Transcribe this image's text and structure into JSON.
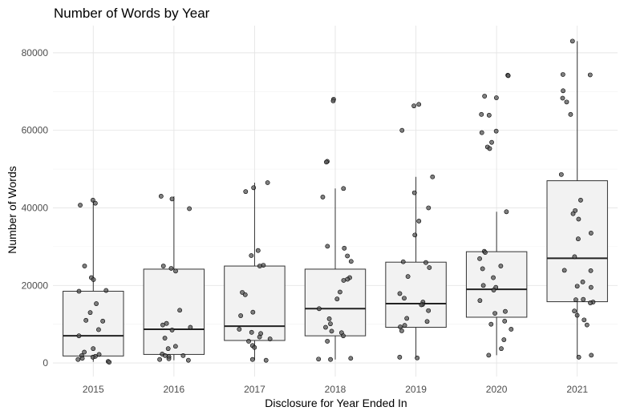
{
  "chart_data": {
    "type": "box",
    "title": "Number of Words by Year",
    "xlabel": "Disclosure for Year Ended In",
    "ylabel": "Number of Words",
    "categories": [
      "2015",
      "2016",
      "2017",
      "2018",
      "2019",
      "2020",
      "2021"
    ],
    "yticks": [
      "0",
      "20000",
      "40000",
      "60000",
      "80000"
    ],
    "ylim": [
      -3500,
      87000
    ],
    "grid": true,
    "colors": {
      "box_fill": "#f2f2f2",
      "point": "#555555",
      "line": "#333333"
    },
    "boxes": [
      {
        "category": "2015",
        "min": 300,
        "q1": 1800,
        "median": 7000,
        "q3": 18500,
        "max": 42000
      },
      {
        "category": "2016",
        "min": 700,
        "q1": 2200,
        "median": 8700,
        "q3": 24200,
        "max": 43000
      },
      {
        "category": "2017",
        "min": 800,
        "q1": 5800,
        "median": 9500,
        "q3": 25000,
        "max": 46500
      },
      {
        "category": "2018",
        "min": 900,
        "q1": 7000,
        "median": 14000,
        "q3": 24200,
        "max": 45000
      },
      {
        "category": "2019",
        "min": 1300,
        "q1": 9200,
        "median": 15300,
        "q3": 26000,
        "max": 48000
      },
      {
        "category": "2020",
        "min": 2000,
        "q1": 11800,
        "median": 19000,
        "q3": 28700,
        "max": 39000
      },
      {
        "category": "2021",
        "min": 1500,
        "q1": 15800,
        "median": 27000,
        "q3": 47000,
        "max": 83000
      }
    ],
    "points": [
      {
        "category": "2015",
        "values": [
          42000,
          41200,
          40700,
          25000,
          22000,
          21500,
          18500,
          18700,
          15300,
          13000,
          11000,
          10800,
          8600,
          7000,
          3700,
          2800,
          2200,
          1900,
          1700,
          1500,
          1200,
          900,
          400,
          200
        ]
      },
      {
        "category": "2016",
        "values": [
          43000,
          42300,
          39800,
          25000,
          24400,
          23700,
          13600,
          10200,
          9800,
          9200,
          8500,
          6400,
          4300,
          3700,
          2300,
          1900,
          1600,
          1100,
          900,
          700,
          1900
        ]
      },
      {
        "category": "2017",
        "values": [
          46500,
          45200,
          44200,
          29000,
          27700,
          25200,
          25000,
          18200,
          17600,
          13100,
          12200,
          8700,
          7900,
          7600,
          6700,
          6200,
          5600,
          4500,
          4000,
          900,
          700
        ]
      },
      {
        "category": "2018",
        "values": [
          68000,
          67600,
          52000,
          51800,
          45000,
          42800,
          30100,
          29600,
          27600,
          26200,
          22000,
          21600,
          21300,
          18300,
          16500,
          14000,
          11400,
          10100,
          9200,
          8200,
          7800,
          7000,
          5600,
          1200,
          1000,
          900
        ]
      },
      {
        "category": "2019",
        "values": [
          66700,
          66300,
          60000,
          48000,
          43900,
          40000,
          36600,
          33000,
          26100,
          25900,
          24600,
          22300,
          17900,
          16700,
          15700,
          15100,
          15000,
          13500,
          11500,
          10700,
          9700,
          9300,
          8300,
          1500,
          1300
        ]
      },
      {
        "category": "2020",
        "values": [
          74200,
          74100,
          68800,
          68400,
          64100,
          63900,
          59800,
          59400,
          56900,
          55700,
          55300,
          39000,
          28800,
          28500,
          26900,
          25000,
          24300,
          22000,
          20000,
          19500,
          18800,
          16100,
          13300,
          12800,
          10800,
          10000,
          8700,
          6000,
          3700,
          2000
        ]
      },
      {
        "category": "2021",
        "values": [
          83000,
          74400,
          74300,
          70200,
          68300,
          67300,
          64100,
          48600,
          42000,
          39300,
          38500,
          37100,
          33500,
          32000,
          27400,
          23900,
          23800,
          20900,
          19800,
          19500,
          16400,
          16300,
          15700,
          15500,
          13400,
          12300,
          11100,
          9800,
          2000,
          1500
        ]
      }
    ]
  }
}
